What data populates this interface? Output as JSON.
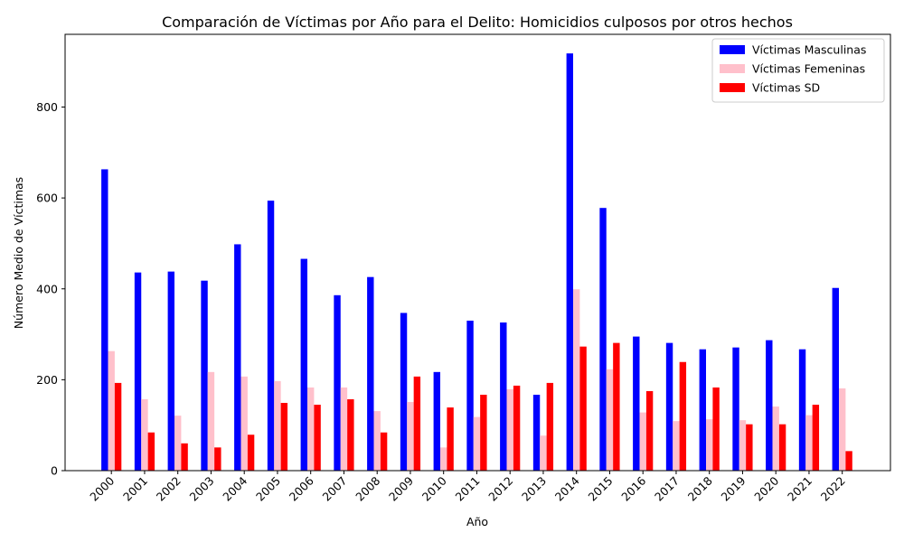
{
  "chart_data": {
    "type": "bar",
    "title": "Comparación de Víctimas por Año para el Delito: Homicidios culposos por otros hechos",
    "xlabel": "Año",
    "ylabel": "Número Medio de Víctimas",
    "ylim": [
      0,
      960
    ],
    "yticks": [
      0,
      200,
      400,
      600,
      800
    ],
    "grid": false,
    "legend_position": "top-right",
    "categories": [
      "2000",
      "2001",
      "2002",
      "2003",
      "2004",
      "2005",
      "2006",
      "2007",
      "2008",
      "2009",
      "2010",
      "2011",
      "2012",
      "2013",
      "2014",
      "2015",
      "2016",
      "2017",
      "2018",
      "2019",
      "2020",
      "2021",
      "2022"
    ],
    "series": [
      {
        "name": "Víctimas Masculinas",
        "color": "#0000ff",
        "values": [
          663,
          436,
          438,
          418,
          498,
          594,
          466,
          386,
          426,
          347,
          217,
          330,
          326,
          167,
          918,
          578,
          295,
          281,
          267,
          271,
          287,
          267,
          402
        ]
      },
      {
        "name": "Víctimas Femeninas",
        "color": "#ffc0cb",
        "values": [
          263,
          157,
          121,
          217,
          207,
          197,
          183,
          183,
          131,
          151,
          51,
          118,
          179,
          77,
          399,
          223,
          128,
          109,
          113,
          111,
          141,
          122,
          181
        ]
      },
      {
        "name": "Víctimas SD",
        "color": "#ff0000",
        "values": [
          193,
          84,
          60,
          51,
          79,
          149,
          145,
          157,
          84,
          207,
          139,
          167,
          187,
          193,
          273,
          281,
          175,
          239,
          183,
          102,
          102,
          145,
          43
        ]
      }
    ]
  }
}
